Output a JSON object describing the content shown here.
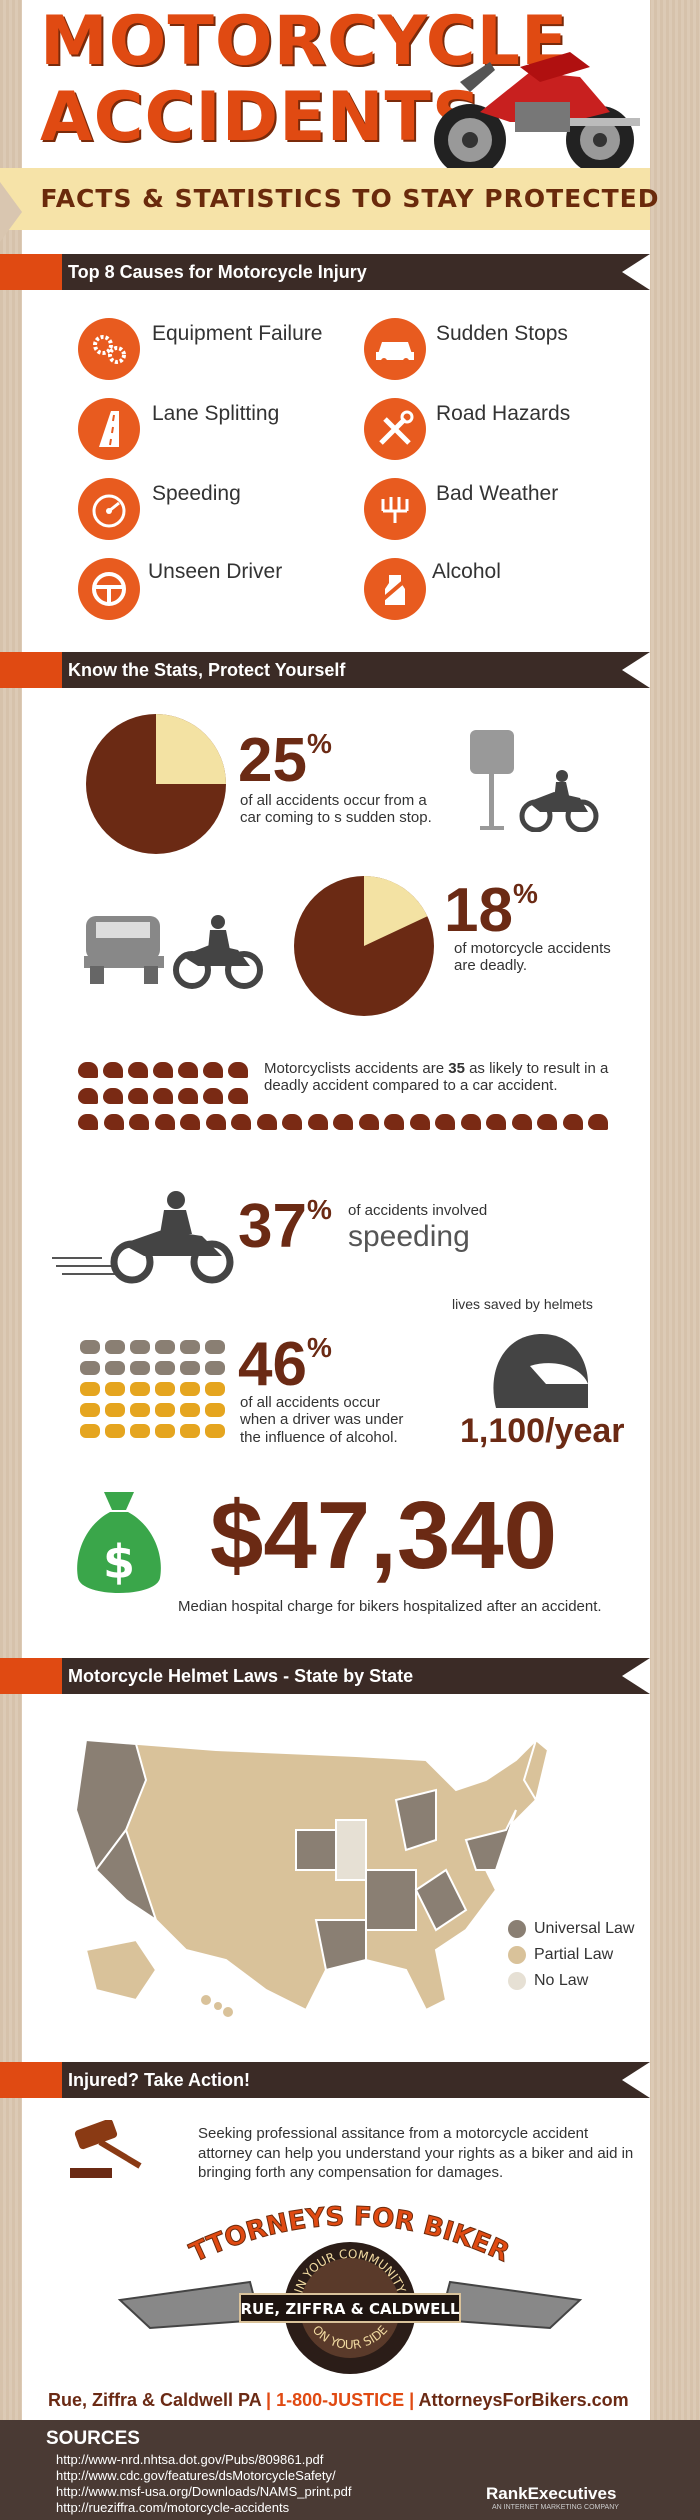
{
  "header": {
    "title_line1": "MOTORCYCLE",
    "title_line2": "ACCIDENTS",
    "subtitle": "FACTS & STATISTICS TO STAY PROTECTED"
  },
  "causes": {
    "heading": "Top 8 Causes for Motorcycle Injury",
    "items": [
      {
        "label": "Equipment Failure",
        "icon": "gears-icon"
      },
      {
        "label": "Sudden Stops",
        "icon": "car-icon"
      },
      {
        "label": "Lane Splitting",
        "icon": "road-icon"
      },
      {
        "label": "Road Hazards",
        "icon": "tools-icon"
      },
      {
        "label": "Speeding",
        "icon": "speedometer-icon"
      },
      {
        "label": "Bad Weather",
        "icon": "rain-icon"
      },
      {
        "label": "Unseen Driver",
        "icon": "steering-wheel-icon"
      },
      {
        "label": "Alcohol",
        "icon": "no-drinking-icon"
      }
    ]
  },
  "stats": {
    "heading": "Know the Stats, Protect Yourself",
    "sudden_stop": {
      "value": "25",
      "unit": "%",
      "fraction": 0.25,
      "text": "of all accidents occur from a car coming to s sudden stop."
    },
    "deadly": {
      "value": "18",
      "unit": "%",
      "fraction": 0.18,
      "text": "of motorcycle accidents are deadly."
    },
    "helmets_compare": {
      "text_before": "Motorcyclists accidents are ",
      "value": "35",
      "text_after": " as likely to result in a deadly accident compared to a car accident.",
      "icon_count": 35
    },
    "speeding": {
      "value": "37",
      "unit": "%",
      "text1": "of accidents involved",
      "text2": "speeding"
    },
    "alcohol": {
      "value": "46",
      "unit": "%",
      "text": "of all accidents occur when a driver was under the influence of alcohol."
    },
    "helmets": {
      "label": "lives saved by helmets",
      "value": "1,100/year"
    },
    "hospital": {
      "value": "$47,340",
      "text": "Median hospital charge for bikers hospitalized after an accident."
    }
  },
  "laws": {
    "heading": "Motorcycle Helmet Laws - State by State",
    "legend": [
      {
        "label": "Universal Law",
        "color": "#8a7f73"
      },
      {
        "label": "Partial Law",
        "color": "#d9c29a"
      },
      {
        "label": "No Law",
        "color": "#e6e0d4"
      }
    ]
  },
  "action": {
    "heading": "Injured? Take Action!",
    "text": "Seeking professional assitance from a motorcycle accident attorney can help you understand your rights as a biker and aid in bringing forth any compensation for damages.",
    "badge_top": "ATTORNEYS FOR BIKERS",
    "badge_ring_top": "IN YOUR COMMUNITY",
    "badge_ring_bottom": "ON YOUR SIDE",
    "badge_firm": "RUE, ZIFFRA & CALDWELL",
    "contact_firm": "Rue, Ziffra & Caldwell PA",
    "contact_phone": "1-800-JUSTICE",
    "contact_site": "AttorneysForBikers.com"
  },
  "sources": {
    "title": "SOURCES",
    "lines": [
      "http://www-nrd.nhtsa.dot.gov/Pubs/809861.pdf",
      "http://www.cdc.gov/features/dsMotorcycleSafety/",
      "http://www.msf-usa.org/Downloads/NAMS_print.pdf",
      "http://rueziffra.com/motorcycle-accidents"
    ],
    "brand": "RankExecutives",
    "brand_sub": "AN INTERNET MARKETING COMPANY"
  }
}
